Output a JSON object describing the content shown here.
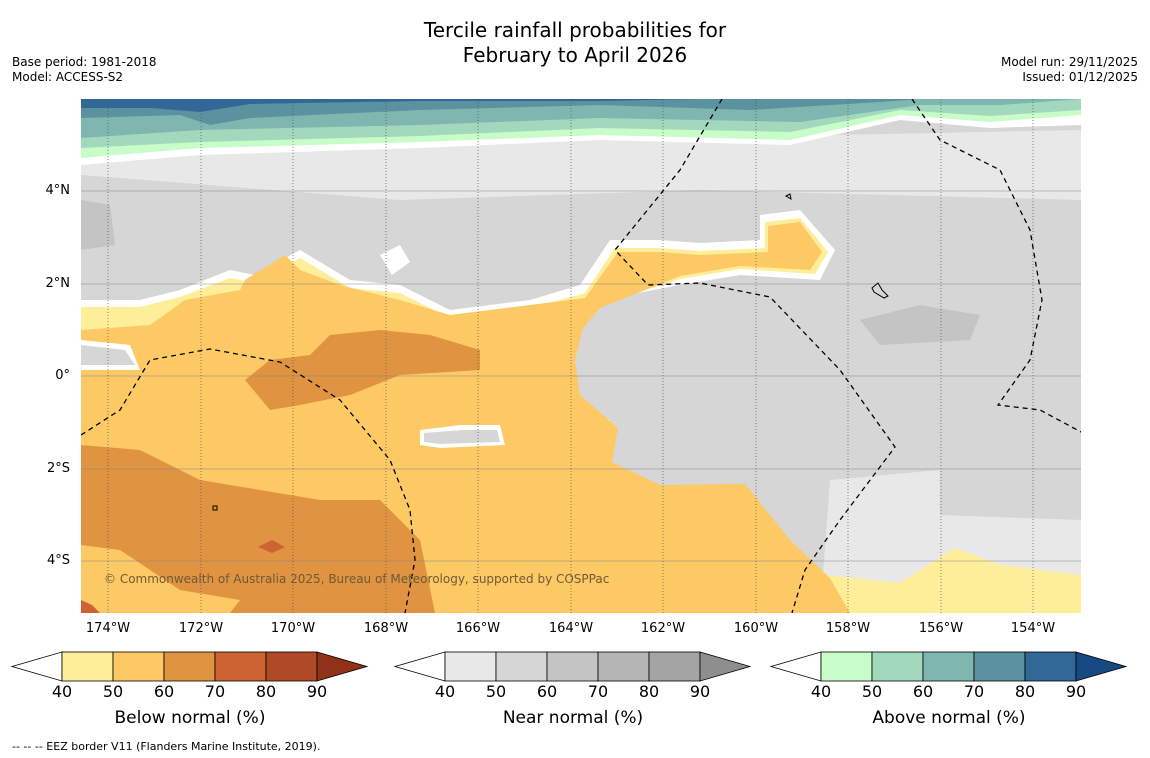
{
  "title_line1": "Tercile rainfall probabilities for",
  "title_line2": "February to April 2026",
  "base_period": "Base period: 1981-2018",
  "model": "Model: ACCESS-S2",
  "model_run": "Model run: 29/11/2025",
  "issued": "Issued: 01/12/2025",
  "copyright": "© Commonwealth of Australia 2025, Bureau of Meteorology, supported by COSPPac",
  "lat_labels": [
    "4°N",
    "2°N",
    "0°",
    "2°S",
    "4°S"
  ],
  "lon_labels": [
    "174°W",
    "172°W",
    "170°W",
    "168°W",
    "166°W",
    "164°W",
    "162°W",
    "160°W",
    "158°W",
    "156°W",
    "154°W"
  ],
  "colorbars": [
    {
      "title": "Below normal (%)",
      "ticks": [
        "40",
        "50",
        "60",
        "70",
        "80",
        "90"
      ],
      "colors": [
        "#ffee99",
        "#fdc964",
        "#e09340",
        "#cd6332",
        "#b04a26",
        "#8f3218"
      ]
    },
    {
      "title": "Near normal (%)",
      "ticks": [
        "40",
        "50",
        "60",
        "70",
        "80",
        "90"
      ],
      "colors": [
        "#e8e8e8",
        "#d6d6d6",
        "#c4c4c4",
        "#b4b4b4",
        "#a4a4a4",
        "#8e8e8e"
      ]
    },
    {
      "title": "Above normal (%)",
      "ticks": [
        "40",
        "50",
        "60",
        "70",
        "80",
        "90"
      ],
      "colors": [
        "#c8fcc8",
        "#a2d8bc",
        "#80b6b0",
        "#5a92a0",
        "#316898",
        "#174a82"
      ]
    }
  ],
  "legend_text": "--  --  -- EEZ border V11 (Flanders Marine Institute, 2019)."
}
